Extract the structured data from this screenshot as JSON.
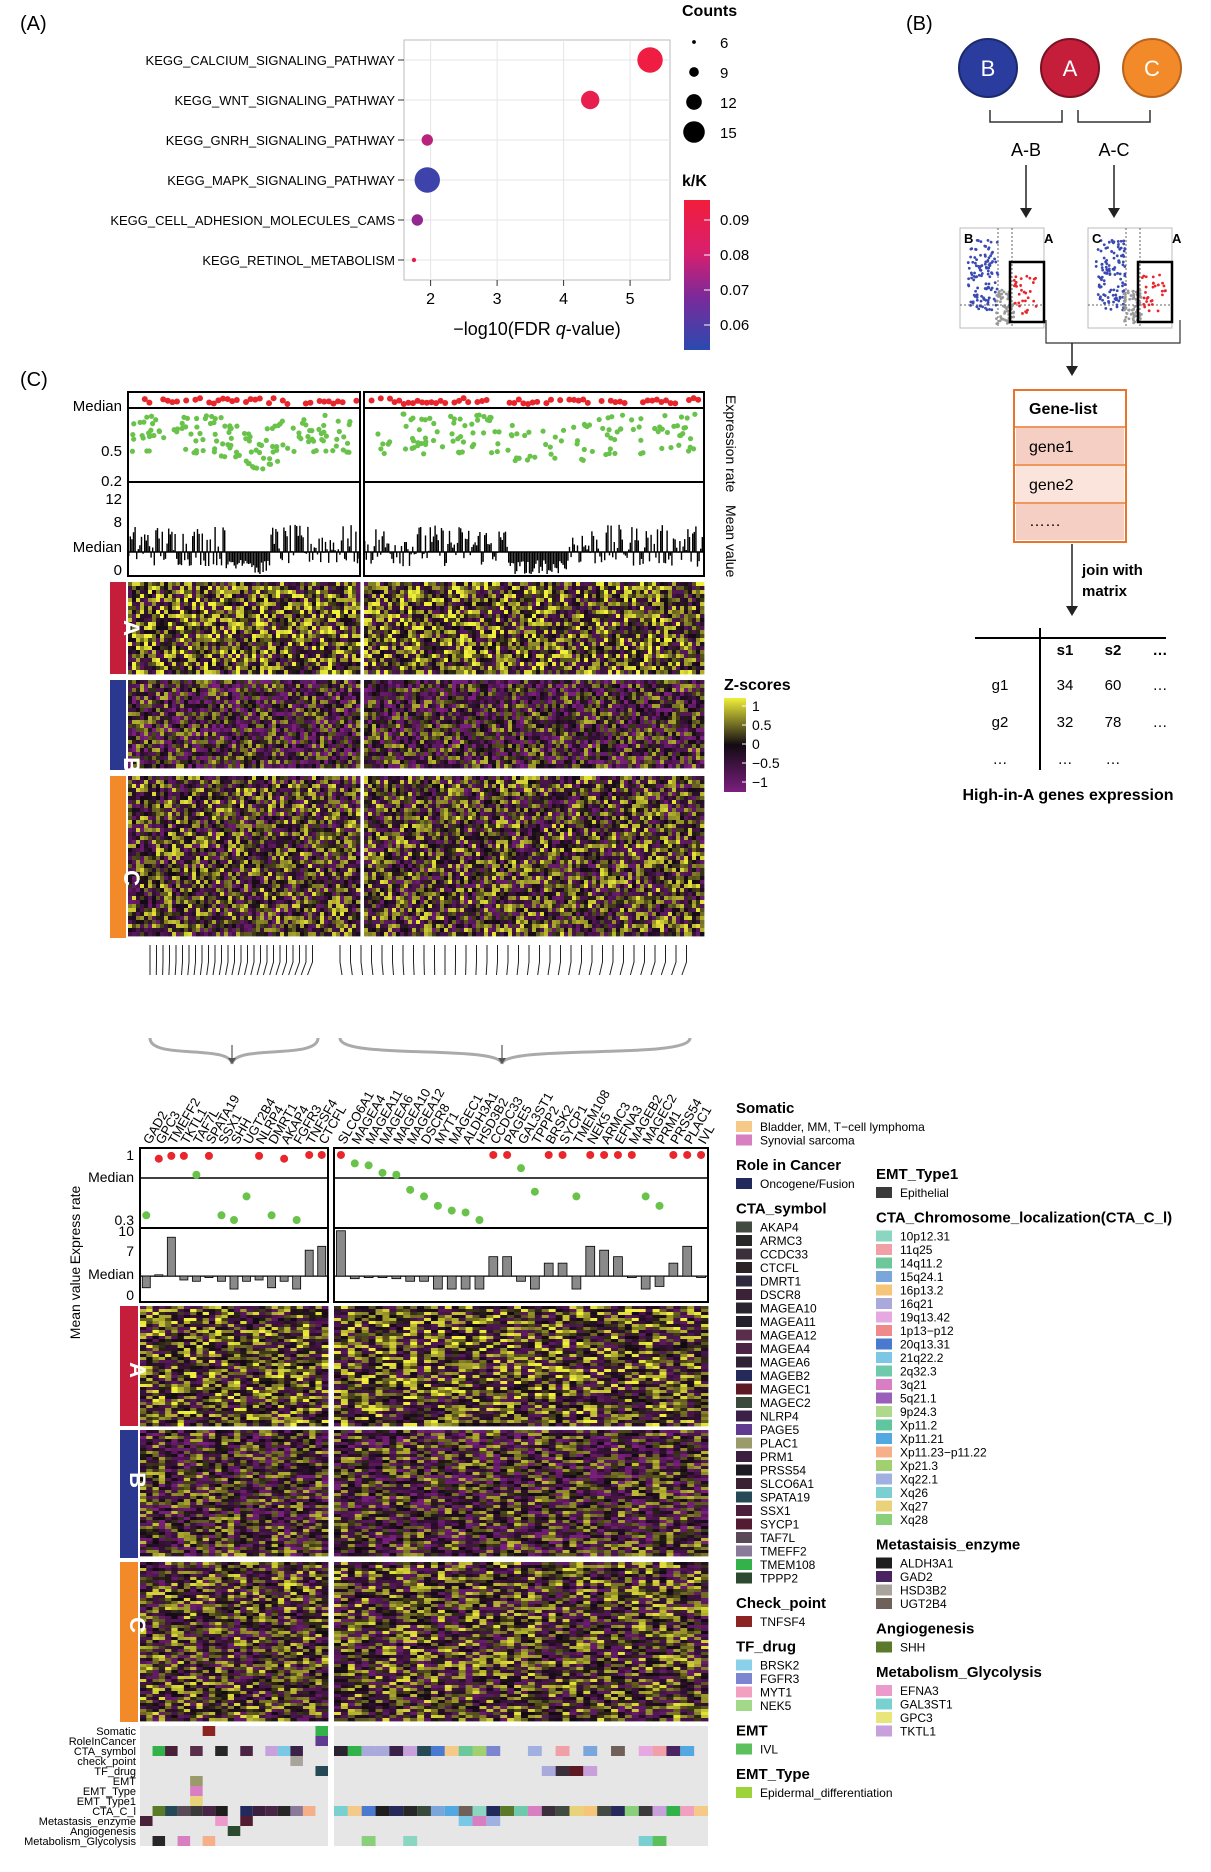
{
  "panel_labels": {
    "a": "(A)",
    "b": "(B)",
    "c": "(C)"
  },
  "colors": {
    "red": "#e8262c",
    "green": "#69c24a",
    "yellow": "#f0ef3a",
    "purple": "#7b1f7f",
    "dark": "#160c16",
    "groupA": "#c41e3a",
    "groupB": "#2a3890",
    "groupC": "#f28a2a",
    "orange_box": "#e8752a"
  },
  "chart_data": [
    {
      "type": "scatter",
      "panel": "(A)",
      "title": "",
      "xlabel_pre": "−log10(FDR ",
      "xlabel_q": "q",
      "xlabel_post": "-value)",
      "xlim": [
        1.6,
        5.6
      ],
      "x_ticks": [
        "2",
        "3",
        "4",
        "5"
      ],
      "categories": [
        "KEGG_CALCIUM_SIGNALING_PATHWAY",
        "KEGG_WNT_SIGNALING_PATHWAY",
        "KEGG_GNRH_SIGNALING_PATHWAY",
        "KEGG_MAPK_SIGNALING_PATHWAY",
        "KEGG_CELL_ADHESION_MOLECULES_CAMS",
        "KEGG_RETINOL_METABOLISM"
      ],
      "x": [
        5.3,
        4.4,
        1.95,
        1.95,
        1.8,
        1.75
      ],
      "counts": [
        15,
        12,
        9,
        15,
        9,
        6
      ],
      "ratio": [
        0.093,
        0.089,
        0.075,
        0.058,
        0.07,
        0.088
      ],
      "size_legend": {
        "title": "Counts",
        "values": [
          6,
          9,
          12,
          15
        ]
      },
      "color_legend": {
        "title": "k/K",
        "ticks": [
          "0.09",
          "0.08",
          "0.07",
          "0.06"
        ],
        "range": [
          0.055,
          0.095
        ]
      }
    },
    {
      "type": "scatter",
      "panel": "(C) top tracks",
      "left_axis": [
        "Median",
        "0.5",
        "0.2",
        "12",
        "8",
        "Median",
        "0"
      ],
      "right_axis": [
        "Expression rate",
        "Mean value"
      ],
      "groups": [
        "A",
        "B",
        "C"
      ]
    },
    {
      "type": "heatmap",
      "panel": "(C) top heatmap",
      "legend_title": "Z-scores",
      "legend_ticks": [
        "1",
        "0.5",
        "0",
        "−0.5",
        "−1"
      ],
      "range": [
        -1,
        1
      ]
    },
    {
      "type": "bar",
      "panel": "(C) bottom",
      "genes_left": [
        "GAD2",
        "GPC3",
        "TMEFF2",
        "TKTL1",
        "TAF7L",
        "SPATA19",
        "SSX1",
        "SHH",
        "UGT2B4",
        "NLRP4",
        "DMRT1",
        "AKAP4",
        "FGFR3",
        "TNFSF4",
        "CTCFL"
      ],
      "genes_right": [
        "SLCO6A1",
        "MAGEA4",
        "MAGEA11",
        "MAGEA6",
        "MAGEA10",
        "MAGEA12",
        "DSCR8",
        "MYT1",
        "MAGEC1",
        "ALDH3A1",
        "HSD3B2",
        "CCDC33",
        "PAGE5",
        "GAL3ST1",
        "TPPP2",
        "BRSK2",
        "SYCP1",
        "TMEM108",
        "NEK5",
        "ARMC3",
        "EFNA3",
        "MAGEB2",
        "MAGEC2",
        "PRM1",
        "PRSS54",
        "PLAC1",
        "IVL"
      ],
      "left_axis_rate": [
        "1",
        "Median",
        "0.3"
      ],
      "left_axis_mean": [
        "10",
        "7",
        "Median",
        "0"
      ],
      "axis_title_rate": "Express rate",
      "axis_title_mean": "Mean value",
      "rate_left": [
        0.35,
        0.95,
        0.98,
        0.98,
        0.78,
        0.98,
        0.35,
        0.3,
        0.55,
        0.98,
        0.35,
        0.95,
        0.3,
        0.99,
        0.99
      ],
      "rate_right": [
        0.99,
        0.9,
        0.88,
        0.8,
        0.78,
        0.62,
        0.55,
        0.45,
        0.4,
        0.38,
        0.3,
        0.99,
        0.99,
        0.85,
        0.6,
        0.99,
        0.99,
        0.55,
        0.99,
        0.99,
        0.99,
        0.99,
        0.55,
        0.45,
        0.99,
        0.99,
        0.99
      ],
      "mean_left": [
        2.2,
        4.2,
        10,
        3.4,
        3.2,
        4.0,
        3.2,
        2.0,
        3.2,
        3.4,
        2.2,
        3.2,
        2.0,
        8.0,
        8.6
      ],
      "mean_right": [
        11,
        3.6,
        4.0,
        4.0,
        3.6,
        3.2,
        3.2,
        2.0,
        2.0,
        2.0,
        2.0,
        7.0,
        7.0,
        3.2,
        2.0,
        6.0,
        6.0,
        2.0,
        8.6,
        8.0,
        7.0,
        4.0,
        2.0,
        2.4,
        6.0,
        8.6,
        4.0
      ],
      "median_mean": 4.0
    }
  ],
  "diagram_b": {
    "circles": [
      "B",
      "A",
      "C"
    ],
    "comparisons": [
      "A-B",
      "A-C"
    ],
    "volcano_labels": [
      "B",
      "A",
      "C",
      "A"
    ],
    "gene_list": {
      "title": "Gene-list",
      "rows": [
        "gene1",
        "gene2",
        "……"
      ]
    },
    "join_text": [
      "join with",
      "matrix"
    ],
    "matrix": {
      "header": [
        "",
        "s1",
        "s2",
        "…"
      ],
      "rows": [
        [
          "g1",
          "34",
          "60",
          "…"
        ],
        [
          "g2",
          "32",
          "78",
          "…"
        ],
        [
          "…",
          "…",
          "…",
          ""
        ]
      ]
    },
    "caption": "High-in-A genes expression"
  },
  "groups": [
    "A",
    "B",
    "C"
  ],
  "annotation_rows": [
    "Somatic",
    "RoleInCancer",
    "CTA_symbol",
    "check_point",
    "TF_drug",
    "EMT",
    "EMT_Type",
    "EMT_Type1",
    "CTA_C_l",
    "Metastasis_enzyme",
    "Angiogenesis",
    "Metabolism_Glycolysis"
  ],
  "legend_left": [
    {
      "title": "Somatic",
      "items": [
        {
          "label": "Bladder, MM, T−cell lymphoma",
          "color": "#f5c987"
        },
        {
          "label": "Synovial sarcoma",
          "color": "#d77fc1"
        }
      ]
    },
    {
      "title": "Role in Cancer",
      "items": [
        {
          "label": "Oncogene/Fusion",
          "color": "#222a5c"
        }
      ]
    },
    {
      "title": "CTA_symbol",
      "items": [
        {
          "label": "AKAP4",
          "color": "#424a42"
        },
        {
          "label": "ARMC3",
          "color": "#272727"
        },
        {
          "label": "CCDC33",
          "color": "#3a2f3a"
        },
        {
          "label": "CTCFL",
          "color": "#2b2226"
        },
        {
          "label": "DMRT1",
          "color": "#2e2a3e"
        },
        {
          "label": "DSCR8",
          "color": "#3c2236"
        },
        {
          "label": "MAGEA10",
          "color": "#2a2430"
        },
        {
          "label": "MAGEA11",
          "color": "#24202c"
        },
        {
          "label": "MAGEA12",
          "color": "#5a2d4a"
        },
        {
          "label": "MAGEA4",
          "color": "#4a2445"
        },
        {
          "label": "MAGEA6",
          "color": "#2f2232"
        },
        {
          "label": "MAGEB2",
          "color": "#262a5a"
        },
        {
          "label": "MAGEC1",
          "color": "#5e1a22"
        },
        {
          "label": "MAGEC2",
          "color": "#3a4a3a"
        },
        {
          "label": "NLRP4",
          "color": "#3b2047"
        },
        {
          "label": "PAGE5",
          "color": "#603b8f"
        },
        {
          "label": "PLAC1",
          "color": "#9a9a6a"
        },
        {
          "label": "PRM1",
          "color": "#3a1f3e"
        },
        {
          "label": "PRSS54",
          "color": "#1e1a24"
        },
        {
          "label": "SLCO6A1",
          "color": "#3a2233"
        },
        {
          "label": "SPATA19",
          "color": "#254a55"
        },
        {
          "label": "SSX1",
          "color": "#4a1f3a"
        },
        {
          "label": "SYCP1",
          "color": "#521c33"
        },
        {
          "label": "TAF7L",
          "color": "#5a4a58"
        },
        {
          "label": "TMEFF2",
          "color": "#8a7a9a"
        },
        {
          "label": "TMEM108",
          "color": "#34b24a"
        },
        {
          "label": "TPPP2",
          "color": "#2c4a30"
        }
      ]
    },
    {
      "title": "Check_point",
      "items": [
        {
          "label": "TNFSF4",
          "color": "#8c2424"
        }
      ]
    },
    {
      "title": "TF_drug",
      "items": [
        {
          "label": "BRSK2",
          "color": "#8ad0ea"
        },
        {
          "label": "FGFR3",
          "color": "#7c86d0"
        },
        {
          "label": "MYT1",
          "color": "#f2a0c0"
        },
        {
          "label": "NEK5",
          "color": "#a2d88a"
        }
      ]
    },
    {
      "title": "EMT",
      "items": [
        {
          "label": "IVL",
          "color": "#5cc05c"
        }
      ]
    },
    {
      "title": "EMT_Type",
      "items": [
        {
          "label": "Epidermal_differentiation",
          "color": "#9cd23c"
        }
      ]
    }
  ],
  "legend_right": [
    {
      "title": "EMT_Type1",
      "items": [
        {
          "label": "Epithelial",
          "color": "#3a3a3a"
        }
      ]
    },
    {
      "title": "CTA_Chromosome_localization(CTA_C_l)",
      "items": [
        {
          "label": "10p12.31",
          "color": "#8ad6c0"
        },
        {
          "label": "11q25",
          "color": "#f0a0a6"
        },
        {
          "label": "14q11.2",
          "color": "#6cc79a"
        },
        {
          "label": "15q24.1",
          "color": "#7aa6dc"
        },
        {
          "label": "16p13.2",
          "color": "#f5c57a"
        },
        {
          "label": "16q21",
          "color": "#a9a9dc"
        },
        {
          "label": "19q13.42",
          "color": "#e6a8e0"
        },
        {
          "label": "1p13−p12",
          "color": "#f08a8a"
        },
        {
          "label": "20q13.31",
          "color": "#4a7ad0"
        },
        {
          "label": "21q22.2",
          "color": "#7ac8e6"
        },
        {
          "label": "2q32.3",
          "color": "#6fc9ac"
        },
        {
          "label": "3q21",
          "color": "#d87fc4"
        },
        {
          "label": "5q21.1",
          "color": "#9a5fb8"
        },
        {
          "label": "9p24.3",
          "color": "#b0d88a"
        },
        {
          "label": "Xp11.2",
          "color": "#5fc6a0"
        },
        {
          "label": "Xp11.21",
          "color": "#52a8e0"
        },
        {
          "label": "Xp11.23−p11.22",
          "color": "#f5b08a"
        },
        {
          "label": "Xp21.3",
          "color": "#a0d070"
        },
        {
          "label": "Xq22.1",
          "color": "#a0b0e0"
        },
        {
          "label": "Xq26",
          "color": "#7ad0d0"
        },
        {
          "label": "Xq27",
          "color": "#e8d27a"
        },
        {
          "label": "Xq28",
          "color": "#8ad07a"
        }
      ]
    },
    {
      "title": "Metastaisis_enzyme",
      "items": [
        {
          "label": "ALDH3A1",
          "color": "#1e1e1e"
        },
        {
          "label": "GAD2",
          "color": "#4a2460"
        },
        {
          "label": "HSD3B2",
          "color": "#a8a49c"
        },
        {
          "label": "UGT2B4",
          "color": "#70605a"
        }
      ]
    },
    {
      "title": "Angiogenesis",
      "items": [
        {
          "label": "SHH",
          "color": "#5a7a2a"
        }
      ]
    },
    {
      "title": "Metabolism_Glycolysis",
      "items": [
        {
          "label": "EFNA3",
          "color": "#ea9acb"
        },
        {
          "label": "GAL3ST1",
          "color": "#7ad0d0"
        },
        {
          "label": "GPC3",
          "color": "#e8e67a"
        },
        {
          "label": "TKTL1",
          "color": "#c8a0dc"
        }
      ]
    }
  ]
}
